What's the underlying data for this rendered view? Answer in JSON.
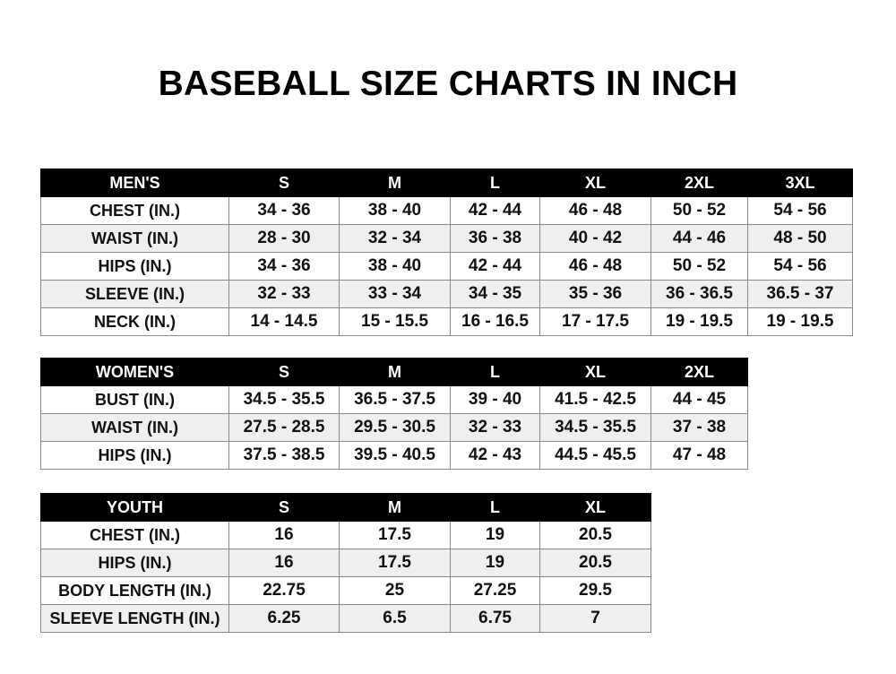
{
  "title": "BASEBALL SIZE CHARTS IN INCH",
  "tables": {
    "men": {
      "header": [
        "MEN'S",
        "S",
        "M",
        "L",
        "XL",
        "2XL",
        "3XL"
      ],
      "rows": [
        [
          "CHEST (IN.)",
          "34 - 36",
          "38 - 40",
          "42 - 44",
          "46 - 48",
          "50 - 52",
          "54 - 56"
        ],
        [
          "WAIST (IN.)",
          "28 - 30",
          "32 - 34",
          "36 - 38",
          "40 - 42",
          "44 - 46",
          "48 - 50"
        ],
        [
          "HIPS (IN.)",
          "34 - 36",
          "38 - 40",
          "42 - 44",
          "46 - 48",
          "50 - 52",
          "54 - 56"
        ],
        [
          "SLEEVE (IN.)",
          "32 - 33",
          "33 - 34",
          "34 - 35",
          "35 - 36",
          "36 - 36.5",
          "36.5 - 37"
        ],
        [
          "NECK (IN.)",
          "14 - 14.5",
          "15 - 15.5",
          "16 - 16.5",
          "17 - 17.5",
          "19 - 19.5",
          "19 - 19.5"
        ]
      ]
    },
    "women": {
      "header": [
        "WOMEN'S",
        "S",
        "M",
        "L",
        "XL",
        "2XL"
      ],
      "rows": [
        [
          "BUST (IN.)",
          "34.5 - 35.5",
          "36.5 - 37.5",
          "39 - 40",
          "41.5 - 42.5",
          "44 - 45"
        ],
        [
          "WAIST (IN.)",
          "27.5 - 28.5",
          "29.5 - 30.5",
          "32 - 33",
          "34.5 - 35.5",
          "37 - 38"
        ],
        [
          "HIPS (IN.)",
          "37.5 - 38.5",
          "39.5 - 40.5",
          "42 - 43",
          "44.5 - 45.5",
          "47 - 48"
        ]
      ]
    },
    "youth": {
      "header": [
        "YOUTH",
        "S",
        "M",
        "L",
        "XL"
      ],
      "rows": [
        [
          "CHEST (IN.)",
          "16",
          "17.5",
          "19",
          "20.5"
        ],
        [
          "HIPS (IN.)",
          "16",
          "17.5",
          "19",
          "20.5"
        ],
        [
          "BODY LENGTH (IN.)",
          "22.75",
          "25",
          "27.25",
          "29.5"
        ],
        [
          "SLEEVE LENGTH (IN.)",
          "6.25",
          "6.5",
          "6.75",
          "7"
        ]
      ]
    }
  }
}
